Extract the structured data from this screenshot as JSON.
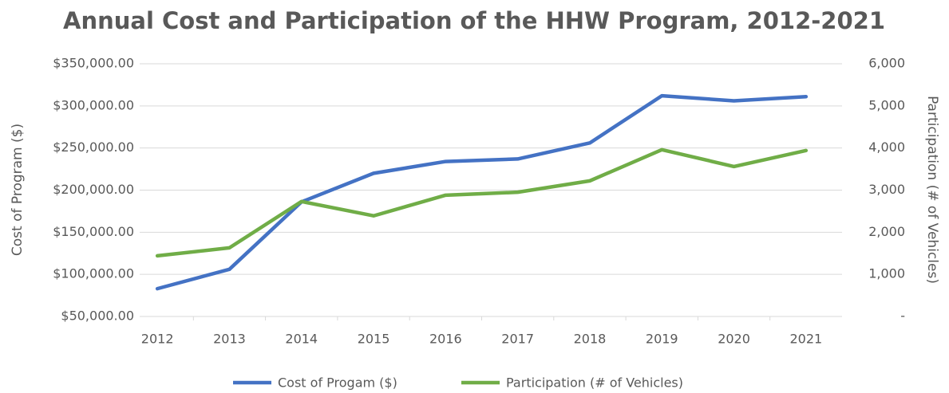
{
  "chart_data": {
    "type": "line",
    "title": "Annual Cost and Participation of the HHW Program, 2012-2021",
    "ylabel": "Cost of Program ($)",
    "y2label": "Participation (# of Vehicles)",
    "categories": [
      "2012",
      "2013",
      "2014",
      "2015",
      "2016",
      "2017",
      "2018",
      "2019",
      "2020",
      "2021"
    ],
    "series": [
      {
        "name": "Cost of Progam ($)",
        "color": "#4472c4",
        "values": [
          83000,
          106000,
          186000,
          220000,
          234000,
          237000,
          256000,
          312000,
          306000,
          311000
        ]
      },
      {
        "name": "Participation (# of Vehicles)",
        "color": "#70ad47",
        "axis": "y2",
        "values": [
          1440,
          1630,
          2730,
          2390,
          2880,
          2950,
          3220,
          3960,
          3560,
          3940
        ]
      }
    ],
    "ylim": [
      50000,
      350000
    ],
    "yticks": [
      {
        "value": 50000,
        "label": "$50,000.00"
      },
      {
        "value": 100000,
        "label": "$100,000.00"
      },
      {
        "value": 150000,
        "label": "$150,000.00"
      },
      {
        "value": 200000,
        "label": "$200,000.00"
      },
      {
        "value": 250000,
        "label": "$250,000.00"
      },
      {
        "value": 300000,
        "label": "$300,000.00"
      },
      {
        "value": 350000,
        "label": "$350,000.00"
      }
    ],
    "y2lim": [
      0,
      6000
    ],
    "y2ticks": [
      {
        "value": 0,
        "label": "-"
      },
      {
        "value": 1000,
        "label": "1,000"
      },
      {
        "value": 2000,
        "label": "2,000"
      },
      {
        "value": 3000,
        "label": "3,000"
      },
      {
        "value": 4000,
        "label": "4,000"
      },
      {
        "value": 5000,
        "label": "5,000"
      },
      {
        "value": 6000,
        "label": "6,000"
      }
    ],
    "grid": true,
    "legend": "bottom"
  }
}
